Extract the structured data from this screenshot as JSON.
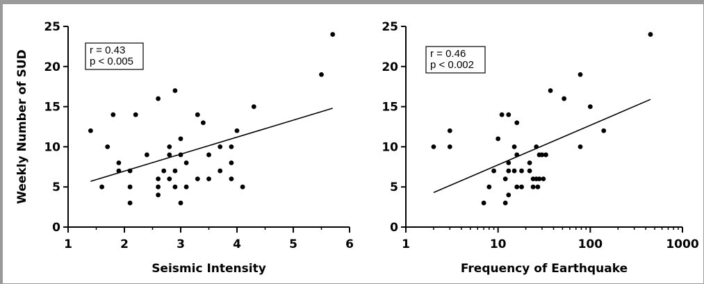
{
  "chart_data": [
    {
      "type": "scatter",
      "xlabel": "Seismic Intensity",
      "ylabel": "Weekly Number of SUD",
      "xlim": [
        1,
        6
      ],
      "ylim": [
        0,
        25
      ],
      "xticks": [
        "1",
        "2",
        "3",
        "4",
        "5",
        "6"
      ],
      "yticks": [
        "0",
        "5",
        "10",
        "15",
        "20",
        "25"
      ],
      "x_scale": "linear",
      "annotation": [
        "r = 0.43",
        "p < 0.005"
      ],
      "fit_line": {
        "x": [
          1.4,
          5.7
        ],
        "y": [
          5.7,
          14.8
        ]
      },
      "points": [
        [
          1.4,
          12
        ],
        [
          1.6,
          5
        ],
        [
          1.7,
          10
        ],
        [
          1.8,
          14
        ],
        [
          1.9,
          8
        ],
        [
          1.9,
          7
        ],
        [
          2.1,
          7
        ],
        [
          2.1,
          5
        ],
        [
          2.1,
          3
        ],
        [
          2.2,
          14
        ],
        [
          2.4,
          9
        ],
        [
          2.6,
          16
        ],
        [
          2.6,
          6
        ],
        [
          2.6,
          5
        ],
        [
          2.6,
          4
        ],
        [
          2.7,
          7
        ],
        [
          2.8,
          10
        ],
        [
          2.8,
          9
        ],
        [
          2.8,
          6
        ],
        [
          2.9,
          17
        ],
        [
          2.9,
          7
        ],
        [
          2.9,
          5
        ],
        [
          3.0,
          11
        ],
        [
          3.0,
          9
        ],
        [
          3.0,
          3
        ],
        [
          3.1,
          8
        ],
        [
          3.1,
          5
        ],
        [
          3.3,
          14
        ],
        [
          3.3,
          6
        ],
        [
          3.4,
          13
        ],
        [
          3.5,
          9
        ],
        [
          3.5,
          6
        ],
        [
          3.7,
          10
        ],
        [
          3.7,
          7
        ],
        [
          3.9,
          10
        ],
        [
          3.9,
          8
        ],
        [
          3.9,
          6
        ],
        [
          4.0,
          12
        ],
        [
          4.1,
          5
        ],
        [
          4.3,
          15
        ],
        [
          5.5,
          19
        ],
        [
          5.7,
          24
        ]
      ]
    },
    {
      "type": "scatter",
      "xlabel": "Frequency of Earthquake",
      "ylabel": "",
      "xlim": [
        1,
        1000
      ],
      "ylim": [
        0,
        25
      ],
      "xticks": [
        "1",
        "10",
        "100",
        "1000"
      ],
      "yticks": [
        "0",
        "5",
        "10",
        "15",
        "20",
        "25"
      ],
      "x_scale": "log",
      "annotation": [
        "r = 0.46",
        "p < 0.002"
      ],
      "fit_line": {
        "x": [
          2,
          450
        ],
        "y": [
          4.3,
          15.9
        ]
      },
      "points": [
        [
          2,
          10
        ],
        [
          3,
          12
        ],
        [
          3,
          10
        ],
        [
          7,
          3
        ],
        [
          8,
          5
        ],
        [
          9,
          7
        ],
        [
          10,
          11
        ],
        [
          11,
          14
        ],
        [
          12,
          6
        ],
        [
          12,
          3
        ],
        [
          13,
          14
        ],
        [
          13,
          8
        ],
        [
          13,
          7
        ],
        [
          13,
          4
        ],
        [
          15,
          10
        ],
        [
          15,
          7
        ],
        [
          16,
          13
        ],
        [
          16,
          9
        ],
        [
          16,
          5
        ],
        [
          18,
          7
        ],
        [
          18,
          5
        ],
        [
          22,
          8
        ],
        [
          22,
          7
        ],
        [
          24,
          6
        ],
        [
          24,
          5
        ],
        [
          26,
          10
        ],
        [
          26,
          6
        ],
        [
          27,
          5
        ],
        [
          28,
          9
        ],
        [
          28,
          6
        ],
        [
          30,
          9
        ],
        [
          31,
          6
        ],
        [
          33,
          9
        ],
        [
          37,
          17
        ],
        [
          52,
          16
        ],
        [
          78,
          19
        ],
        [
          78,
          10
        ],
        [
          100,
          15
        ],
        [
          140,
          12
        ],
        [
          450,
          24
        ]
      ]
    }
  ]
}
